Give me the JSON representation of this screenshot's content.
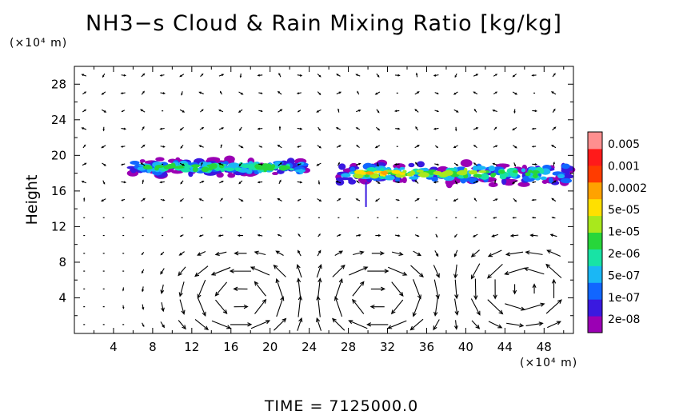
{
  "chart_data": {
    "type": "heatmap",
    "title": "NH3−s Cloud & Rain Mixing Ratio [kg/kg]",
    "ylabel": "Height",
    "y_unit": "(×10⁴ m)",
    "x_unit": "(×10⁴ m)",
    "footer": "TIME  =  7125000.0",
    "xlim": [
      0,
      51
    ],
    "ylim": [
      0,
      30
    ],
    "x_ticks": [
      "4",
      "8",
      "12",
      "16",
      "20",
      "24",
      "28",
      "32",
      "36",
      "40",
      "44",
      "48"
    ],
    "y_ticks": [
      "4",
      "8",
      "12",
      "16",
      "20",
      "24",
      "28"
    ],
    "colorbar": {
      "labels": [
        "0.005",
        "0.001",
        "0.0002",
        "5e-05",
        "1e-05",
        "2e-06",
        "5e-07",
        "1e-07",
        "2e-08"
      ],
      "colors": [
        "#9b00b4",
        "#3a19e0",
        "#1166ff",
        "#1ab7f5",
        "#18e3a5",
        "#27d63a",
        "#a9e81c",
        "#ffe000",
        "#ffa200",
        "#ff3c00",
        "#ff1a1a",
        "#ff8f8f"
      ]
    },
    "cloud_regions": [
      {
        "x_range": [
          5.5,
          24.5
        ],
        "y_range": [
          17.5,
          19.8
        ],
        "peak_level": "1e-05"
      },
      {
        "x_range": [
          26.5,
          51
        ],
        "y_range": [
          16.5,
          19.5
        ],
        "peak_level": "0.0002"
      }
    ],
    "vector_field": {
      "x_spacing": 2,
      "y_spacing": 2,
      "circulation_cells": [
        {
          "center_x": 17,
          "center_y": 4
        },
        {
          "center_x": 31,
          "center_y": 4
        },
        {
          "center_x": 46,
          "center_y": 5
        }
      ]
    }
  }
}
